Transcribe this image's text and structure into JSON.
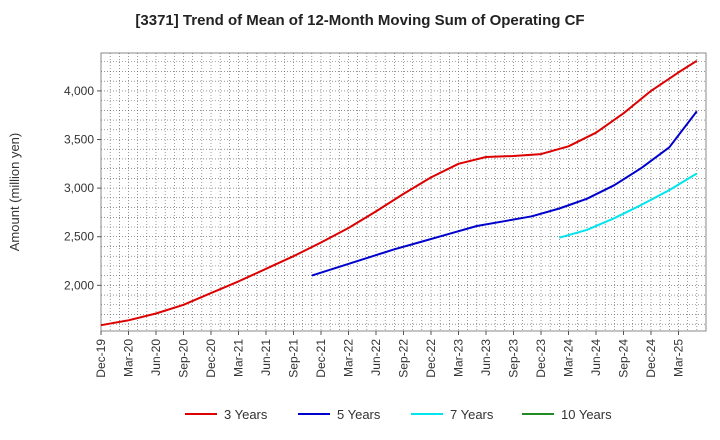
{
  "chart_data": {
    "type": "line",
    "title": "[3371]  Trend of Mean of 12-Month Moving Sum of Operating CF",
    "ylabel": "Amount (million yen)",
    "xlabel": "",
    "ylim": [
      1530,
      4390
    ],
    "yticks": [
      2000,
      2500,
      3000,
      3500,
      4000
    ],
    "ytick_labels": [
      "2,000",
      "2,500",
      "3,000",
      "3,500",
      "4,000"
    ],
    "x_months_total": 66,
    "xtick_labels": [
      "Dec-19",
      "Mar-20",
      "Jun-20",
      "Sep-20",
      "Dec-20",
      "Mar-21",
      "Jun-21",
      "Sep-21",
      "Dec-21",
      "Mar-22",
      "Jun-22",
      "Sep-22",
      "Dec-22",
      "Mar-23",
      "Jun-23",
      "Sep-23",
      "Dec-23",
      "Mar-24",
      "Jun-24",
      "Sep-24",
      "Dec-24",
      "Mar-25"
    ],
    "grid": true,
    "legend_position": "bottom",
    "series": [
      {
        "name": "3 Years",
        "color": "#dd0000",
        "points": [
          [
            0,
            1590
          ],
          [
            3,
            1640
          ],
          [
            6,
            1710
          ],
          [
            9,
            1800
          ],
          [
            12,
            1920
          ],
          [
            15,
            2040
          ],
          [
            18,
            2170
          ],
          [
            21,
            2300
          ],
          [
            24,
            2440
          ],
          [
            27,
            2590
          ],
          [
            30,
            2760
          ],
          [
            33,
            2940
          ],
          [
            36,
            3110
          ],
          [
            39,
            3250
          ],
          [
            42,
            3320
          ],
          [
            45,
            3330
          ],
          [
            48,
            3350
          ],
          [
            51,
            3430
          ],
          [
            54,
            3570
          ],
          [
            57,
            3770
          ],
          [
            60,
            4000
          ],
          [
            63,
            4190
          ],
          [
            65,
            4310
          ]
        ]
      },
      {
        "name": "5 Years",
        "color": "#0000cc",
        "points": [
          [
            23,
            2100
          ],
          [
            26,
            2190
          ],
          [
            29,
            2280
          ],
          [
            32,
            2370
          ],
          [
            35,
            2450
          ],
          [
            38,
            2530
          ],
          [
            41,
            2610
          ],
          [
            44,
            2660
          ],
          [
            47,
            2710
          ],
          [
            50,
            2790
          ],
          [
            53,
            2890
          ],
          [
            56,
            3030
          ],
          [
            59,
            3210
          ],
          [
            62,
            3420
          ],
          [
            65,
            3790
          ]
        ]
      },
      {
        "name": "7 Years",
        "color": "#00e5ee",
        "points": [
          [
            50,
            2490
          ],
          [
            53,
            2570
          ],
          [
            56,
            2690
          ],
          [
            59,
            2830
          ],
          [
            62,
            2980
          ],
          [
            65,
            3150
          ]
        ]
      },
      {
        "name": "10 Years",
        "color": "#228b22",
        "points": []
      }
    ]
  }
}
